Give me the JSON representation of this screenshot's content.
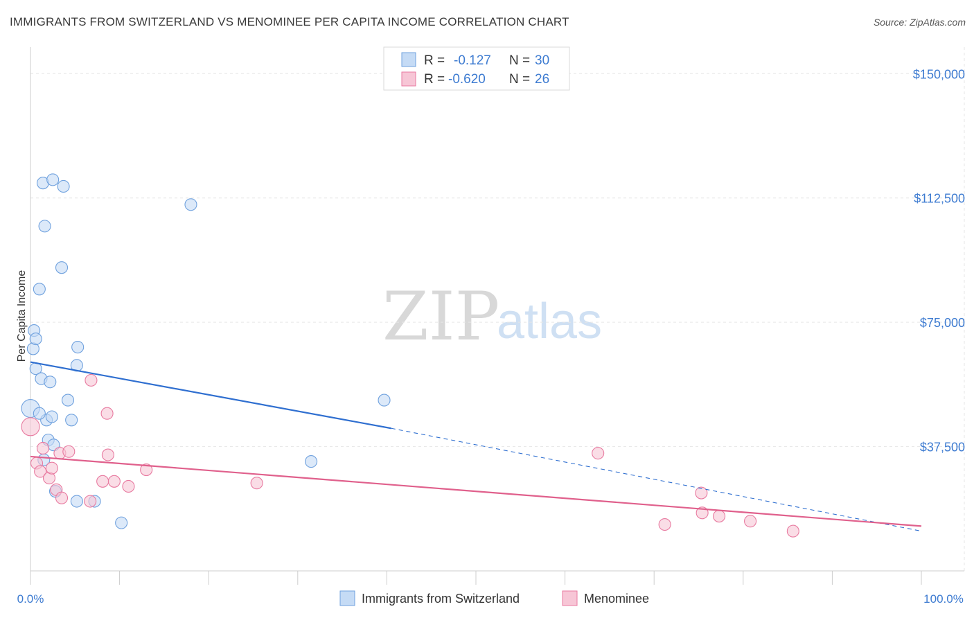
{
  "header": {
    "title": "IMMIGRANTS FROM SWITZERLAND VS MENOMINEE PER CAPITA INCOME CORRELATION CHART",
    "source": "Source: ZipAtlas.com"
  },
  "watermark": {
    "zip": "ZIP",
    "atlas": "atlas"
  },
  "legend": {
    "r_label": "R =",
    "n_label": "N =",
    "rows": [
      {
        "r": "-0.127",
        "n": "30"
      },
      {
        "r": "-0.620",
        "n": "26"
      }
    ]
  },
  "chart_data": {
    "type": "scatter",
    "title": "IMMIGRANTS FROM SWITZERLAND VS MENOMINEE PER CAPITA INCOME CORRELATION CHART",
    "xlabel": "",
    "ylabel": "Per Capita Income",
    "xlim": [
      0,
      100
    ],
    "ylim": [
      0,
      158000
    ],
    "grid": true,
    "x_tick_labels": [
      "0.0%",
      "100.0%"
    ],
    "y_ticks": [
      37500,
      75000,
      112500,
      150000
    ],
    "y_tick_labels": [
      "$37,500",
      "$75,000",
      "$112,500",
      "$150,000"
    ],
    "series": [
      {
        "name": "Immigrants from Switzerland",
        "color": "#6fa1de",
        "fill": "#c5dbf5",
        "points": [
          [
            0.0,
            49000
          ],
          [
            0.3,
            67000
          ],
          [
            0.4,
            72500
          ],
          [
            0.6,
            70000
          ],
          [
            0.6,
            61000
          ],
          [
            1.0,
            85000
          ],
          [
            1.2,
            58000
          ],
          [
            1.4,
            117000
          ],
          [
            1.6,
            104000
          ],
          [
            1.8,
            45500
          ],
          [
            2.0,
            39500
          ],
          [
            2.2,
            57000
          ],
          [
            2.4,
            46500
          ],
          [
            2.5,
            118000
          ],
          [
            2.6,
            38000
          ],
          [
            2.8,
            24000
          ],
          [
            3.5,
            91500
          ],
          [
            3.7,
            116000
          ],
          [
            4.2,
            51500
          ],
          [
            4.6,
            45500
          ],
          [
            5.2,
            62000
          ],
          [
            5.3,
            67500
          ],
          [
            5.2,
            21000
          ],
          [
            7.2,
            21000
          ],
          [
            10.2,
            14500
          ],
          [
            18.0,
            110500
          ],
          [
            1.5,
            33500
          ],
          [
            1.0,
            47500
          ],
          [
            31.5,
            33000
          ],
          [
            39.7,
            51500
          ]
        ],
        "trend": {
          "x0": 0,
          "y0": 63000,
          "x1": 40.5,
          "y1": 43000,
          "dashed_to_x": 100,
          "dashed_to_y": 12000
        }
      },
      {
        "name": "Menominee",
        "color": "#e87aa0",
        "fill": "#f7c6d6",
        "points": [
          [
            0.0,
            43500
          ],
          [
            0.7,
            32500
          ],
          [
            1.1,
            30000
          ],
          [
            1.4,
            37000
          ],
          [
            2.1,
            28000
          ],
          [
            2.4,
            31000
          ],
          [
            2.9,
            24500
          ],
          [
            3.3,
            35500
          ],
          [
            3.5,
            22000
          ],
          [
            4.3,
            36000
          ],
          [
            6.7,
            21000
          ],
          [
            6.8,
            57500
          ],
          [
            8.1,
            27000
          ],
          [
            8.6,
            47500
          ],
          [
            8.7,
            35000
          ],
          [
            9.4,
            27000
          ],
          [
            11.0,
            25500
          ],
          [
            13.0,
            30500
          ],
          [
            25.4,
            26500
          ],
          [
            63.7,
            35500
          ],
          [
            71.2,
            14000
          ],
          [
            75.3,
            23500
          ],
          [
            75.4,
            17500
          ],
          [
            77.3,
            16500
          ],
          [
            80.8,
            15000
          ],
          [
            85.6,
            12000
          ]
        ],
        "trend": {
          "x0": 0,
          "y0": 34500,
          "x1": 100,
          "y1": 13500
        }
      }
    ]
  }
}
